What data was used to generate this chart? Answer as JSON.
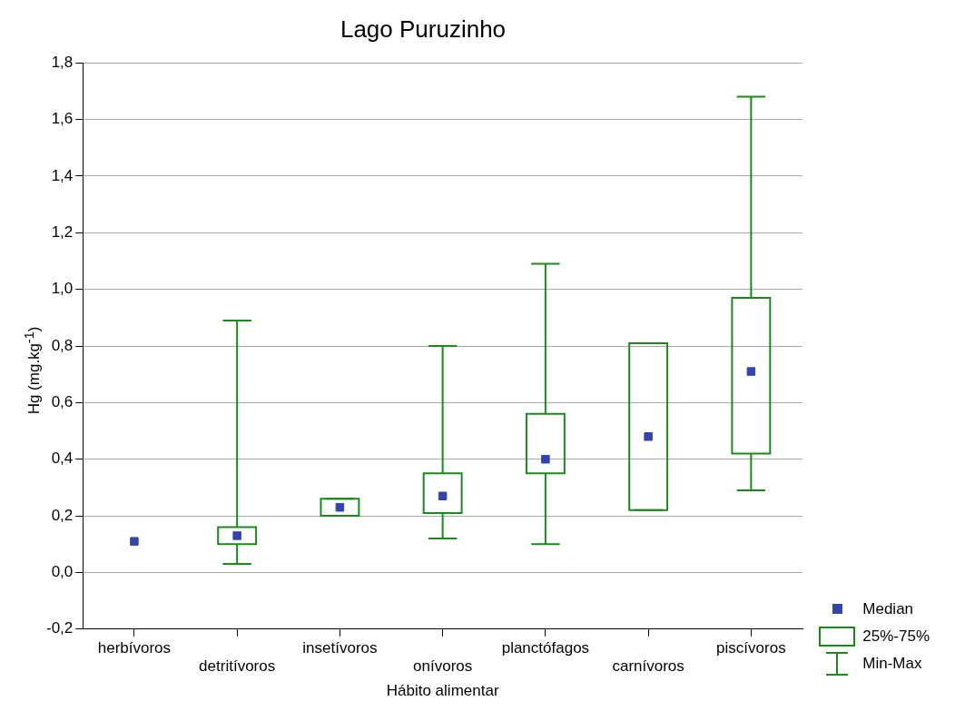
{
  "chart_data": {
    "type": "box",
    "title": "Lago Puruzinho",
    "xlabel": "Hábito alimentar",
    "ylabel": "Hg (mg.kg$^{-1}$)",
    "categories": [
      "herbívoros",
      "detritívoros",
      "insetívoros",
      "onívoros",
      "planctófagos",
      "carnívoros",
      "piscívoros"
    ],
    "ylim": [
      -0.2,
      1.8
    ],
    "yticks": [
      {
        "value": -0.2,
        "label": "-0,2"
      },
      {
        "value": 0,
        "label": "0,0"
      },
      {
        "value": 0.2,
        "label": "0,2"
      },
      {
        "value": 0.4,
        "label": "0,4"
      },
      {
        "value": 0.6,
        "label": "0,6"
      },
      {
        "value": 0.8,
        "label": "0,8"
      },
      {
        "value": 1.0,
        "label": "1,0"
      },
      {
        "value": 1.2,
        "label": "1,2"
      },
      {
        "value": 1.4,
        "label": "1,4"
      },
      {
        "value": 1.6,
        "label": "1,6"
      },
      {
        "value": 1.8,
        "label": "1,8"
      }
    ],
    "grid": "y",
    "legend": "bottom right",
    "annotations": [
      "Min-Max"
    ],
    "series": [
      {
        "type": "box",
        "name": "25%-75%",
        "color": "#1a8a1a",
        "boxes": [
          null,
          {
            "low": 0.03,
            "q1": 0.1,
            "q3": 0.16,
            "high": 0.89
          },
          {
            "low": 0.2,
            "q1": 0.2,
            "q3": 0.26,
            "high": 0.26
          },
          {
            "low": 0.12,
            "q1": 0.21,
            "q3": 0.35,
            "high": 0.8
          },
          {
            "low": 0.1,
            "q1": 0.35,
            "q3": 0.56,
            "high": 1.09
          },
          {
            "low": 0.22,
            "q1": 0.22,
            "q3": 0.81,
            "high": 0.81
          },
          {
            "low": 0.29,
            "q1": 0.42,
            "q3": 0.97,
            "high": 1.68
          }
        ]
      },
      {
        "type": "scatter",
        "name": "Median",
        "color": "#3344aa",
        "marker": "square",
        "x": [
          "herbívoros",
          "detritívoros",
          "insetívoros",
          "onívoros",
          "planctófagos",
          "carnívoros",
          "piscívoros"
        ],
        "values": [
          0.11,
          0.13,
          0.23,
          0.27,
          0.4,
          0.48,
          0.71
        ]
      }
    ]
  }
}
